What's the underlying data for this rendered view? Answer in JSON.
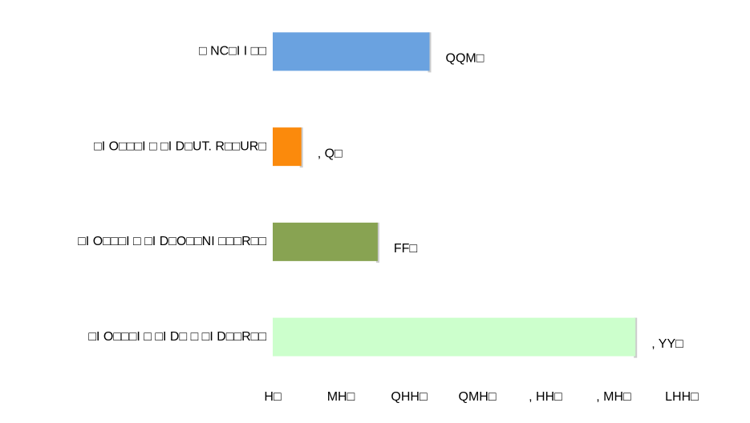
{
  "chart_data": {
    "type": "barh",
    "categories": [
      "□ NC□I I □□",
      "□I O□□□I □  □I D□UT. R□□UR□",
      "□I O□□□I □  □I D□O□□NI □□□R□□",
      "□I O□□□I □  □I D□ □  □I D□□R□□"
    ],
    "values": [
      115,
      21,
      77,
      266
    ],
    "value_labels": [
      "QQM□",
      ", Q□",
      "FF□",
      ", YY□"
    ],
    "colors": [
      "#6aa2e0",
      "#fb8a0c",
      "#88a352",
      "#ccffcc"
    ],
    "xlim": [
      0,
      300
    ],
    "xticks": [
      {
        "value": 0,
        "label": "H□"
      },
      {
        "value": 50,
        "label": "MH□"
      },
      {
        "value": 100,
        "label": "QHH□"
      },
      {
        "value": 150,
        "label": "QMH□"
      },
      {
        "value": 200,
        "label": ", HH□"
      },
      {
        "value": 250,
        "label": ", MH□"
      },
      {
        "value": 300,
        "label": "LHH□"
      }
    ]
  }
}
